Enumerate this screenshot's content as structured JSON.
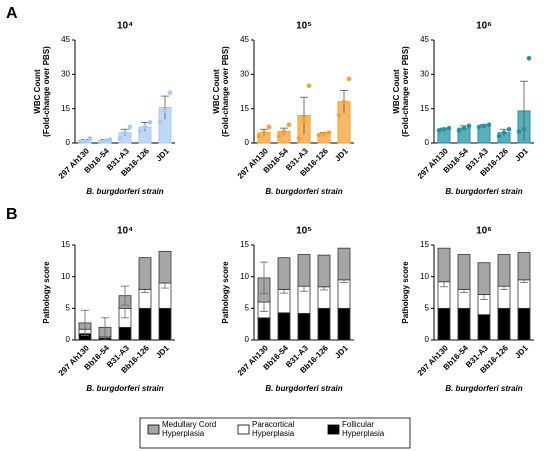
{
  "panel_labels": [
    "A",
    "B"
  ],
  "chart_data": [
    {
      "type": "bar",
      "title": "10⁴",
      "ylabel": [
        "WBC Count",
        "(Fold-change over PBS)"
      ],
      "xlabel": "B. burgdorferi strain",
      "categories": [
        "297 Ah130",
        "Bb16-54",
        "B31-A3",
        "Bb16-126",
        "JD1"
      ],
      "color": "#a9cbf2",
      "values": [
        1,
        1,
        4.5,
        7,
        15.5
      ],
      "errors": [
        0.5,
        0.5,
        1.5,
        2,
        5
      ],
      "points": [
        [
          0.5,
          1,
          2
        ],
        [
          0.5,
          1,
          1.5
        ],
        [
          2,
          4.5,
          7
        ],
        [
          5,
          7,
          9
        ],
        [
          9,
          14,
          22
        ]
      ],
      "ylim": [
        0,
        45
      ],
      "yticks": [
        0,
        15,
        30,
        45
      ]
    },
    {
      "type": "bar",
      "title": "10⁵",
      "ylabel": [
        "WBC Count",
        "(Fold-change over PBS)"
      ],
      "xlabel": "B. burgdorferi strain",
      "categories": [
        "297 Ah130",
        "Bb16-54",
        "B31-A3",
        "Bb16-126",
        "JD1"
      ],
      "color": "#f5a033",
      "values": [
        4.5,
        5,
        12,
        4,
        18
      ],
      "errors": [
        1.5,
        1.5,
        8,
        0.5,
        5
      ],
      "points": [
        [
          3,
          4.5,
          7
        ],
        [
          3,
          5,
          8
        ],
        [
          2,
          10,
          25
        ],
        [
          3.5,
          4,
          4.5
        ],
        [
          12,
          18,
          28
        ]
      ],
      "ylim": [
        0,
        45
      ],
      "yticks": [
        0,
        15,
        30,
        45
      ]
    },
    {
      "type": "bar",
      "title": "10⁶",
      "ylabel": [
        "WBC Count",
        "(Fold-change over PBS)"
      ],
      "xlabel": "B. burgdorferi strain",
      "categories": [
        "297 Ah130",
        "Bb16-54",
        "B31-A3",
        "Bb16-126",
        "JD1"
      ],
      "color": "#2391a3",
      "values": [
        6,
        6.5,
        7.5,
        4.5,
        14
      ],
      "errors": [
        0.5,
        1,
        0.5,
        1.5,
        13
      ],
      "points": [
        [
          5.5,
          6,
          6.5
        ],
        [
          5.5,
          6.5,
          7.5
        ],
        [
          7,
          7.5,
          8
        ],
        [
          3,
          4.5,
          6
        ],
        [
          5,
          6,
          37
        ]
      ],
      "ylim": [
        0,
        45
      ],
      "yticks": [
        0,
        15,
        30,
        45
      ]
    },
    {
      "type": "stacked_bar",
      "title": "10⁴",
      "ylabel": [
        "Pathology score"
      ],
      "xlabel": "B. burgdorferi strain",
      "categories": [
        "297 Ah130",
        "Bb16-54",
        "B31-A3",
        "Bb16-126",
        "JD1"
      ],
      "series": [
        {
          "name": "Follicular Hyperplasia",
          "color": "#000000",
          "values": [
            1,
            0.3,
            2,
            5,
            5
          ]
        },
        {
          "name": "Paracortical Hyperplasia",
          "color": "#ffffff",
          "values": [
            0.7,
            0.2,
            3,
            3,
            4
          ],
          "errors": [
            1,
            0.5,
            1.5,
            0.5,
            0.8
          ]
        },
        {
          "name": "Medullary Cord Hyperplasia",
          "color": "#a6a6a6",
          "values": [
            1,
            1.5,
            2,
            5,
            5
          ],
          "errors": [
            2,
            1.5,
            1.5,
            0,
            0
          ]
        }
      ],
      "ylim": [
        0,
        15
      ],
      "yticks": [
        0,
        5,
        10,
        15
      ]
    },
    {
      "type": "stacked_bar",
      "title": "10⁵",
      "ylabel": [
        "Pathology score"
      ],
      "xlabel": "B. burgdorferi strain",
      "categories": [
        "297 Ah130",
        "Bb16-54",
        "B31-A3",
        "Bb16-126",
        "JD1"
      ],
      "series": [
        {
          "name": "Follicular Hyperplasia",
          "color": "#000000",
          "values": [
            3.5,
            4.3,
            4.2,
            5,
            5
          ]
        },
        {
          "name": "Paracortical Hyperplasia",
          "color": "#ffffff",
          "values": [
            2.5,
            3.7,
            4.3,
            3.4,
            4.5
          ],
          "errors": [
            1.5,
            0.6,
            0.8,
            0.5,
            0.4
          ]
        },
        {
          "name": "Medullary Cord Hyperplasia",
          "color": "#a6a6a6",
          "values": [
            3.8,
            5,
            5,
            5,
            5
          ],
          "errors": [
            2.5,
            0,
            0,
            0,
            0
          ]
        }
      ],
      "ylim": [
        0,
        15
      ],
      "yticks": [
        0,
        5,
        10,
        15
      ]
    },
    {
      "type": "stacked_bar",
      "title": "10⁶",
      "ylabel": [
        "Pathology score"
      ],
      "xlabel": "B. burgdorferi strain",
      "categories": [
        "297 Ah130",
        "Bb16-54",
        "B31-A3",
        "Bb16-126",
        "JD1"
      ],
      "series": [
        {
          "name": "Follicular Hyperplasia",
          "color": "#000000",
          "values": [
            5,
            5,
            4,
            5,
            5
          ]
        },
        {
          "name": "Paracortical Hyperplasia",
          "color": "#ffffff",
          "values": [
            4.2,
            3,
            3.2,
            3.5,
            4.5
          ],
          "errors": [
            0.8,
            0.5,
            0.8,
            0.5,
            0.4
          ]
        },
        {
          "name": "Medullary Cord Hyperplasia",
          "color": "#a6a6a6",
          "values": [
            5.3,
            5.5,
            5,
            5,
            4.3
          ],
          "errors": [
            0,
            0,
            0,
            0,
            0
          ]
        }
      ],
      "ylim": [
        0,
        15
      ],
      "yticks": [
        0,
        5,
        10,
        15
      ]
    }
  ]
}
